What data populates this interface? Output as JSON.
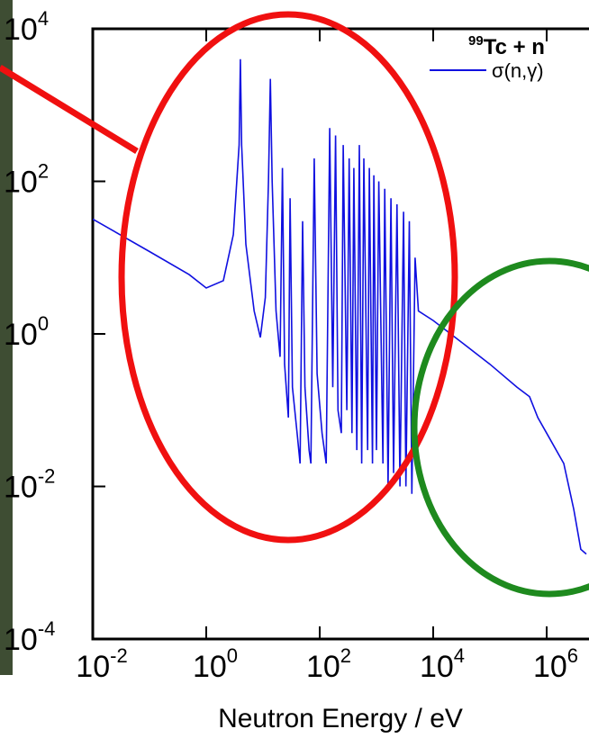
{
  "chart_data": {
    "type": "line",
    "log_x": true,
    "log_y": true,
    "title": {
      "superscript": "99",
      "text": "Tc + n"
    },
    "xlabel": "Neutron Energy / eV",
    "xlim": [
      0.01,
      10000000
    ],
    "ylim": [
      0.0001,
      10000
    ],
    "xticks": [
      {
        "value": 0.01,
        "label": "10",
        "exponent": "-2"
      },
      {
        "value": 1,
        "label": "10",
        "exponent": "0"
      },
      {
        "value": 100,
        "label": "10",
        "exponent": "2"
      },
      {
        "value": 10000,
        "label": "10",
        "exponent": "4"
      },
      {
        "value": 1000000,
        "label": "10",
        "exponent": "6"
      }
    ],
    "yticks": [
      {
        "value": 0.0001,
        "label": "10",
        "exponent": "-4"
      },
      {
        "value": 0.01,
        "label": "10",
        "exponent": "-2"
      },
      {
        "value": 1,
        "label": "10",
        "exponent": "0"
      },
      {
        "value": 100,
        "label": "10",
        "exponent": "2"
      },
      {
        "value": 10000,
        "label": "10",
        "exponent": "4"
      }
    ],
    "series": [
      {
        "name": "σ(n,γ)",
        "color": "#1010e0",
        "x": [
          0.01,
          0.1,
          0.5,
          1,
          2,
          3,
          3.8,
          4.0,
          4.2,
          5,
          7,
          9,
          11,
          12.5,
          13.5,
          14.5,
          17,
          20,
          22,
          24,
          28,
          30,
          33,
          40,
          45,
          50,
          55,
          65,
          70,
          80,
          90,
          110,
          130,
          150,
          170,
          190,
          210,
          240,
          260,
          300,
          330,
          370,
          400,
          450,
          500,
          550,
          600,
          700,
          750,
          850,
          900,
          1000,
          1100,
          1300,
          1400,
          1600,
          1800,
          2000,
          2300,
          2600,
          3000,
          3300,
          3800,
          4200,
          4800,
          5500,
          10000,
          30000,
          100000,
          300000,
          500000,
          700000,
          1000000,
          2000000,
          3000000,
          4000000,
          5000000
        ],
        "values": [
          32,
          12,
          6,
          4,
          5,
          20,
          300,
          4000,
          300,
          15,
          2,
          0.9,
          3,
          100,
          2200,
          100,
          2,
          0.5,
          150,
          0.4,
          0.08,
          60,
          0.2,
          0.05,
          0.02,
          30,
          0.2,
          0.03,
          0.02,
          200,
          0.3,
          0.05,
          0.02,
          500,
          0.2,
          400,
          0.1,
          0.05,
          300,
          0.1,
          200,
          0.05,
          150,
          0.03,
          300,
          0.02,
          200,
          0.03,
          150,
          0.02,
          120,
          0.03,
          100,
          0.02,
          80,
          0.01,
          60,
          0.015,
          50,
          0.01,
          40,
          0.01,
          30,
          0.008,
          10,
          2,
          1.5,
          0.8,
          0.4,
          0.2,
          0.15,
          0.08,
          0.05,
          0.02,
          0.005,
          0.0015,
          0.0013
        ]
      }
    ]
  }
}
